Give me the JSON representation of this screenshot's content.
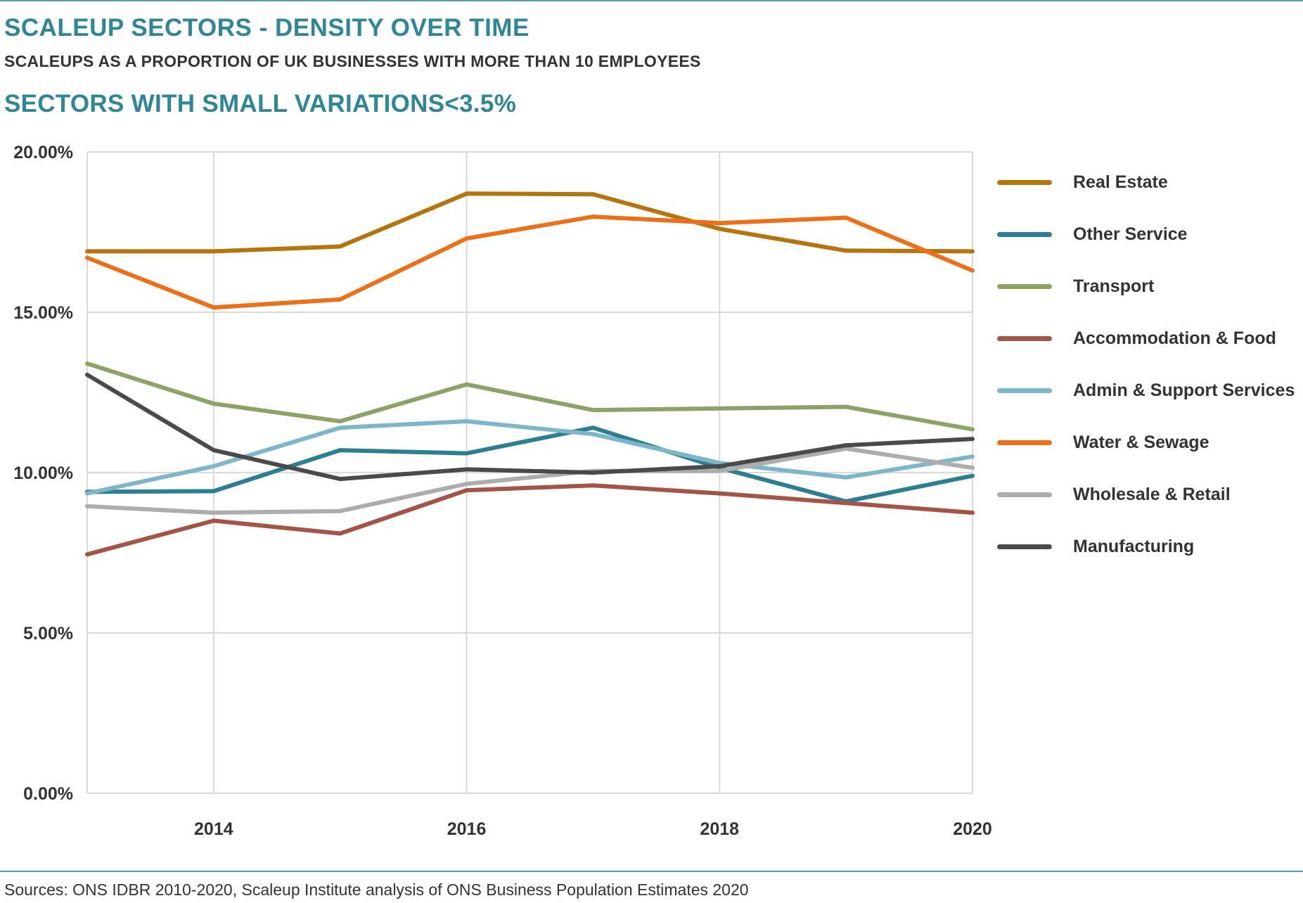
{
  "header": {
    "title": "SCALEUP SECTORS - DENSITY OVER TIME",
    "subtitle": "SCALEUPS AS A PROPORTION OF UK BUSINESSES WITH MORE THAN 10 EMPLOYEES",
    "section": "SECTORS WITH SMALL VARIATIONS<3.5%"
  },
  "footer": {
    "source": "Sources: ONS IDBR 2010-2020, Scaleup Institute analysis of ONS Business Population Estimates 2020"
  },
  "chart_data": {
    "type": "line",
    "x": [
      2013,
      2014,
      2015,
      2016,
      2017,
      2018,
      2019,
      2020
    ],
    "xticks": [
      2014,
      2016,
      2018,
      2020
    ],
    "xtick_labels": [
      "2014",
      "2016",
      "2018",
      "2020"
    ],
    "xlim": [
      2013,
      2020
    ],
    "ylim": [
      0,
      20
    ],
    "yticks": [
      0,
      5,
      10,
      15,
      20
    ],
    "ytick_labels": [
      "0.00%",
      "5.00%",
      "10.00%",
      "15.00%",
      "20.00%"
    ],
    "grid": true,
    "legend_position": "right",
    "series": [
      {
        "name": "Real Estate",
        "color": "#b5740e",
        "values": [
          16.9,
          16.9,
          17.05,
          18.7,
          18.68,
          17.6,
          16.92,
          16.9
        ]
      },
      {
        "name": "Other Service",
        "color": "#2b7f91",
        "values": [
          9.4,
          9.42,
          10.7,
          10.6,
          11.4,
          10.15,
          9.1,
          9.9
        ]
      },
      {
        "name": "Transport",
        "color": "#8ca266",
        "values": [
          13.4,
          12.15,
          11.6,
          12.75,
          11.95,
          12.0,
          12.05,
          11.35
        ]
      },
      {
        "name": "Accommodation & Food",
        "color": "#a35446",
        "values": [
          7.45,
          8.5,
          8.1,
          9.45,
          9.6,
          9.35,
          9.05,
          8.75
        ]
      },
      {
        "name": "Admin & Support Services",
        "color": "#7db6c8",
        "values": [
          9.35,
          10.2,
          11.4,
          11.6,
          11.2,
          10.3,
          9.85,
          10.5
        ]
      },
      {
        "name": "Water & Sewage",
        "color": "#ec6f1a",
        "values": [
          16.7,
          15.15,
          15.4,
          17.3,
          17.98,
          17.78,
          17.95,
          16.3
        ]
      },
      {
        "name": "Wholesale & Retail",
        "color": "#adadad",
        "values": [
          8.95,
          8.75,
          8.8,
          9.65,
          10.05,
          10.05,
          10.75,
          10.15
        ]
      },
      {
        "name": "Manufacturing",
        "color": "#4a4a4c",
        "values": [
          13.05,
          10.7,
          9.8,
          10.1,
          10.0,
          10.2,
          10.85,
          11.05
        ]
      }
    ]
  }
}
